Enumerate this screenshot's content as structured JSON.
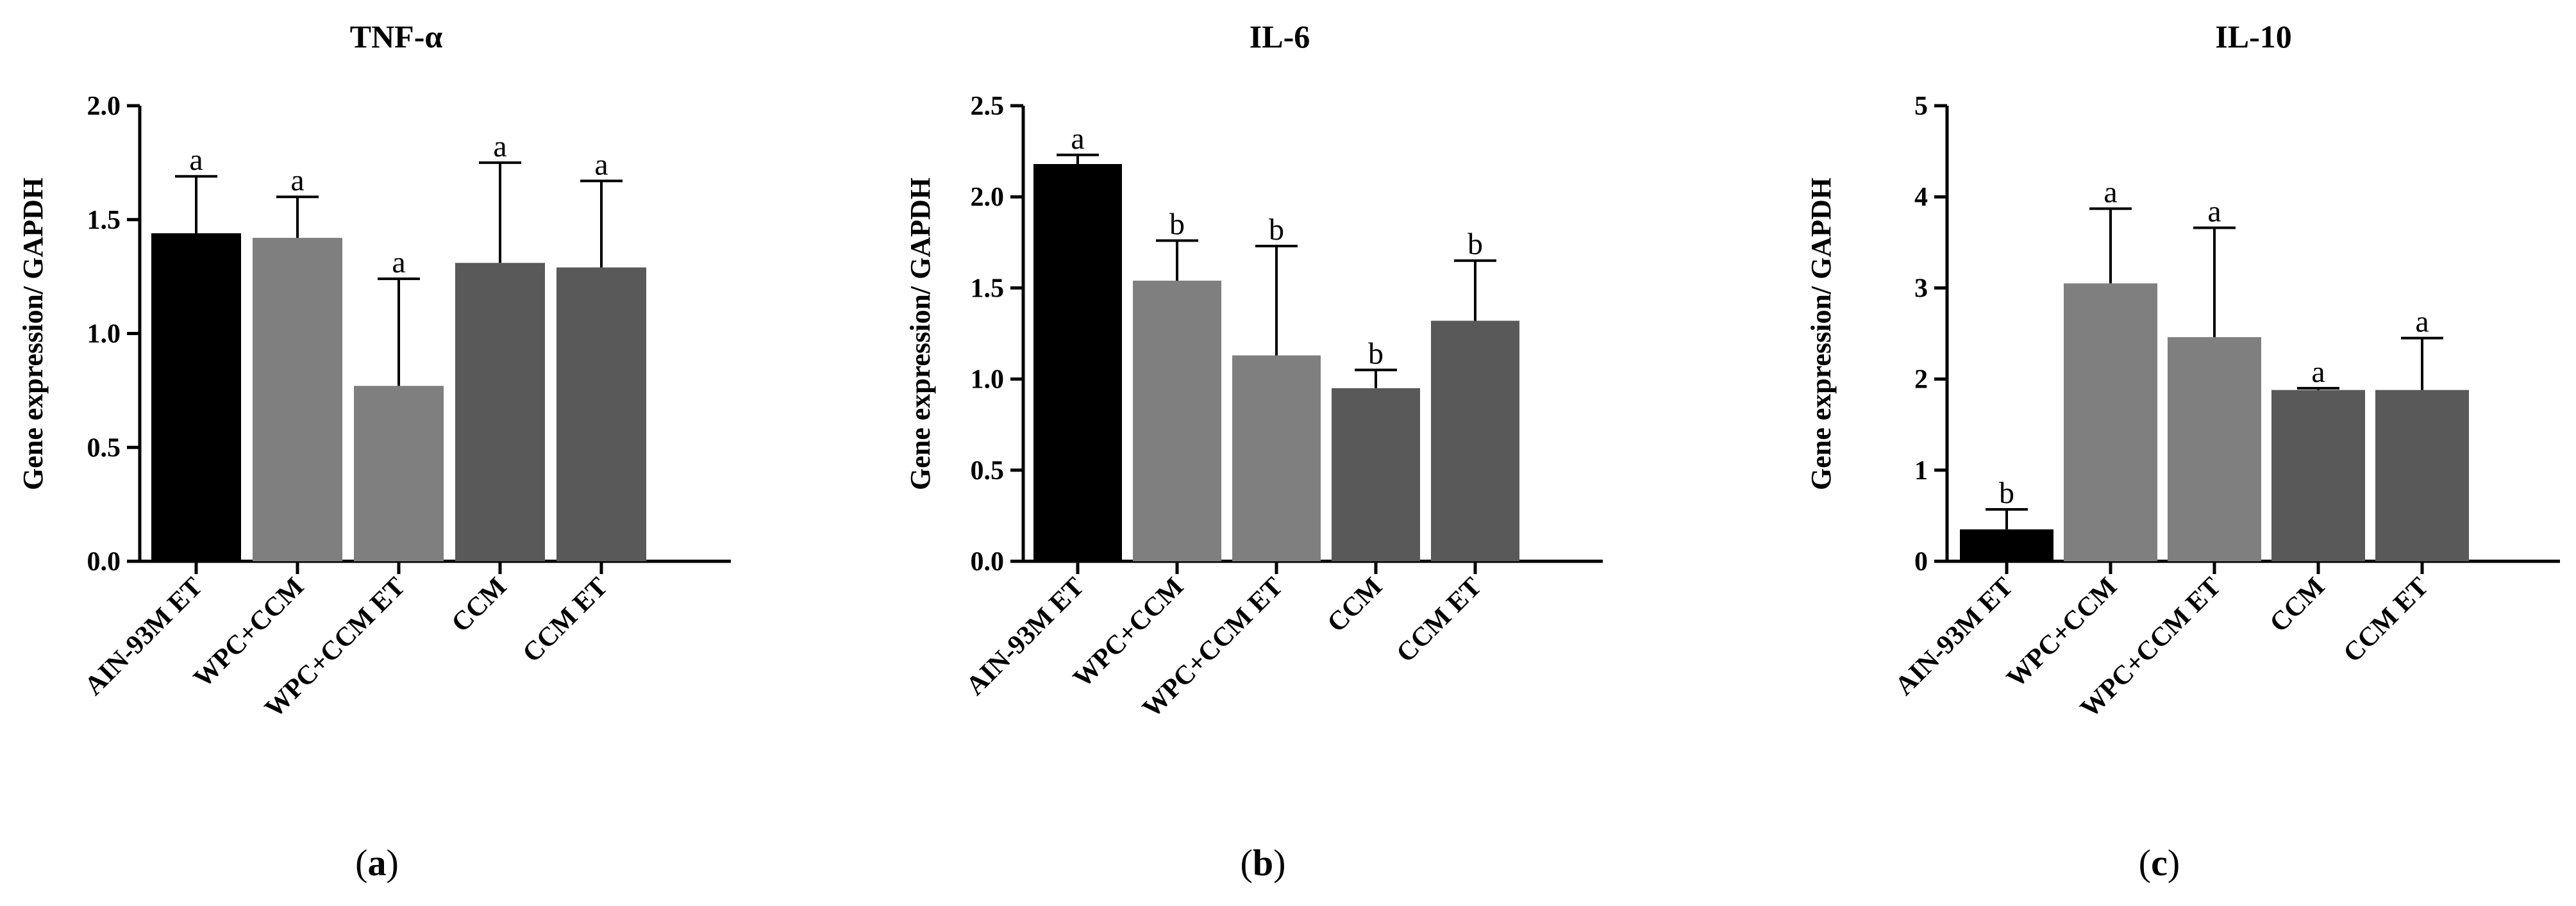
{
  "chart_data": [
    {
      "type": "bar",
      "panel_label": "a",
      "title": "TNF-α",
      "ylabel": "Gene expression/ GAPDH",
      "ylim": [
        0,
        2.0
      ],
      "yticks": [
        "0.0",
        "0.5",
        "1.0",
        "1.5",
        "2.0"
      ],
      "categories": [
        "AIN-93M ET",
        "WPC+CCM",
        "WPC+CCM ET",
        "CCM",
        "CCM ET"
      ],
      "values": [
        1.44,
        1.42,
        0.77,
        1.31,
        1.29
      ],
      "errors": [
        0.25,
        0.18,
        0.47,
        0.44,
        0.38
      ],
      "significance": [
        "a",
        "a",
        "a",
        "a",
        "a"
      ],
      "colors": [
        "#000000",
        "#7f7f7f",
        "#7f7f7f",
        "#595959",
        "#595959"
      ]
    },
    {
      "type": "bar",
      "panel_label": "b",
      "title": "IL-6",
      "ylabel": "Gene expression/ GAPDH",
      "ylim": [
        0,
        2.5
      ],
      "yticks": [
        "0.0",
        "0.5",
        "1.0",
        "1.5",
        "2.0",
        "2.5"
      ],
      "categories": [
        "AIN-93M ET",
        "WPC+CCM",
        "WPC+CCM ET",
        "CCM",
        "CCM ET"
      ],
      "values": [
        2.18,
        1.54,
        1.13,
        0.95,
        1.32
      ],
      "errors": [
        0.05,
        0.22,
        0.6,
        0.1,
        0.33
      ],
      "significance": [
        "a",
        "b",
        "b",
        "b",
        "b"
      ],
      "colors": [
        "#000000",
        "#7f7f7f",
        "#7f7f7f",
        "#595959",
        "#595959"
      ]
    },
    {
      "type": "bar",
      "panel_label": "c",
      "title": "IL-10",
      "ylabel": "Gene expression/ GAPDH",
      "ylim": [
        0,
        5
      ],
      "yticks": [
        "0",
        "1",
        "2",
        "3",
        "4",
        "5"
      ],
      "categories": [
        "AIN-93M ET",
        "WPC+CCM",
        "WPC+CCM ET",
        "CCM",
        "CCM ET"
      ],
      "values": [
        0.35,
        3.05,
        2.46,
        1.88,
        1.88
      ],
      "errors": [
        0.22,
        0.82,
        1.2,
        0.02,
        0.57
      ],
      "significance": [
        "b",
        "a",
        "a",
        "a",
        "a"
      ],
      "colors": [
        "#000000",
        "#7f7f7f",
        "#7f7f7f",
        "#595959",
        "#595959"
      ]
    }
  ]
}
